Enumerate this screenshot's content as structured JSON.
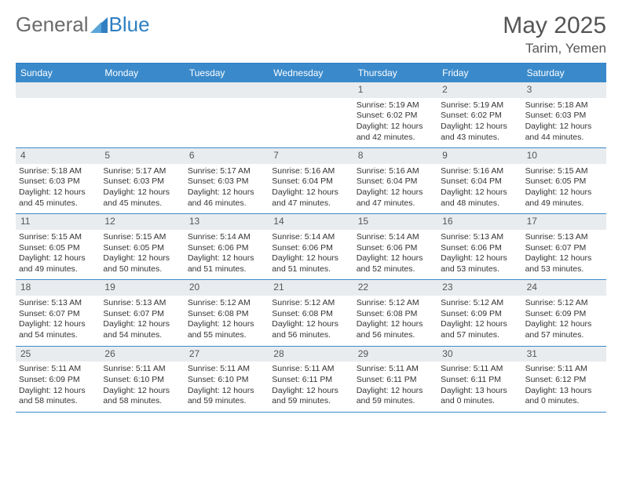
{
  "brand": {
    "part1": "General",
    "part2": "Blue"
  },
  "title": "May 2025",
  "location": "Tarim, Yemen",
  "colors": {
    "header_bg": "#3a8acb",
    "header_text": "#ffffff",
    "border": "#2f7fc2",
    "daynum_bg": "#e9ecef",
    "text": "#333333",
    "muted": "#555555"
  },
  "days_of_week": [
    "Sunday",
    "Monday",
    "Tuesday",
    "Wednesday",
    "Thursday",
    "Friday",
    "Saturday"
  ],
  "weeks": [
    [
      {
        "n": "",
        "empty": true
      },
      {
        "n": "",
        "empty": true
      },
      {
        "n": "",
        "empty": true
      },
      {
        "n": "",
        "empty": true
      },
      {
        "n": "1",
        "sunrise": "5:19 AM",
        "sunset": "6:02 PM",
        "dl_h": 12,
        "dl_m": 42
      },
      {
        "n": "2",
        "sunrise": "5:19 AM",
        "sunset": "6:02 PM",
        "dl_h": 12,
        "dl_m": 43
      },
      {
        "n": "3",
        "sunrise": "5:18 AM",
        "sunset": "6:03 PM",
        "dl_h": 12,
        "dl_m": 44
      }
    ],
    [
      {
        "n": "4",
        "sunrise": "5:18 AM",
        "sunset": "6:03 PM",
        "dl_h": 12,
        "dl_m": 45
      },
      {
        "n": "5",
        "sunrise": "5:17 AM",
        "sunset": "6:03 PM",
        "dl_h": 12,
        "dl_m": 45
      },
      {
        "n": "6",
        "sunrise": "5:17 AM",
        "sunset": "6:03 PM",
        "dl_h": 12,
        "dl_m": 46
      },
      {
        "n": "7",
        "sunrise": "5:16 AM",
        "sunset": "6:04 PM",
        "dl_h": 12,
        "dl_m": 47
      },
      {
        "n": "8",
        "sunrise": "5:16 AM",
        "sunset": "6:04 PM",
        "dl_h": 12,
        "dl_m": 47
      },
      {
        "n": "9",
        "sunrise": "5:16 AM",
        "sunset": "6:04 PM",
        "dl_h": 12,
        "dl_m": 48
      },
      {
        "n": "10",
        "sunrise": "5:15 AM",
        "sunset": "6:05 PM",
        "dl_h": 12,
        "dl_m": 49
      }
    ],
    [
      {
        "n": "11",
        "sunrise": "5:15 AM",
        "sunset": "6:05 PM",
        "dl_h": 12,
        "dl_m": 49
      },
      {
        "n": "12",
        "sunrise": "5:15 AM",
        "sunset": "6:05 PM",
        "dl_h": 12,
        "dl_m": 50
      },
      {
        "n": "13",
        "sunrise": "5:14 AM",
        "sunset": "6:06 PM",
        "dl_h": 12,
        "dl_m": 51
      },
      {
        "n": "14",
        "sunrise": "5:14 AM",
        "sunset": "6:06 PM",
        "dl_h": 12,
        "dl_m": 51
      },
      {
        "n": "15",
        "sunrise": "5:14 AM",
        "sunset": "6:06 PM",
        "dl_h": 12,
        "dl_m": 52
      },
      {
        "n": "16",
        "sunrise": "5:13 AM",
        "sunset": "6:06 PM",
        "dl_h": 12,
        "dl_m": 53
      },
      {
        "n": "17",
        "sunrise": "5:13 AM",
        "sunset": "6:07 PM",
        "dl_h": 12,
        "dl_m": 53
      }
    ],
    [
      {
        "n": "18",
        "sunrise": "5:13 AM",
        "sunset": "6:07 PM",
        "dl_h": 12,
        "dl_m": 54
      },
      {
        "n": "19",
        "sunrise": "5:13 AM",
        "sunset": "6:07 PM",
        "dl_h": 12,
        "dl_m": 54
      },
      {
        "n": "20",
        "sunrise": "5:12 AM",
        "sunset": "6:08 PM",
        "dl_h": 12,
        "dl_m": 55
      },
      {
        "n": "21",
        "sunrise": "5:12 AM",
        "sunset": "6:08 PM",
        "dl_h": 12,
        "dl_m": 56
      },
      {
        "n": "22",
        "sunrise": "5:12 AM",
        "sunset": "6:08 PM",
        "dl_h": 12,
        "dl_m": 56
      },
      {
        "n": "23",
        "sunrise": "5:12 AM",
        "sunset": "6:09 PM",
        "dl_h": 12,
        "dl_m": 57
      },
      {
        "n": "24",
        "sunrise": "5:12 AM",
        "sunset": "6:09 PM",
        "dl_h": 12,
        "dl_m": 57
      }
    ],
    [
      {
        "n": "25",
        "sunrise": "5:11 AM",
        "sunset": "6:09 PM",
        "dl_h": 12,
        "dl_m": 58
      },
      {
        "n": "26",
        "sunrise": "5:11 AM",
        "sunset": "6:10 PM",
        "dl_h": 12,
        "dl_m": 58
      },
      {
        "n": "27",
        "sunrise": "5:11 AM",
        "sunset": "6:10 PM",
        "dl_h": 12,
        "dl_m": 59
      },
      {
        "n": "28",
        "sunrise": "5:11 AM",
        "sunset": "6:11 PM",
        "dl_h": 12,
        "dl_m": 59
      },
      {
        "n": "29",
        "sunrise": "5:11 AM",
        "sunset": "6:11 PM",
        "dl_h": 12,
        "dl_m": 59
      },
      {
        "n": "30",
        "sunrise": "5:11 AM",
        "sunset": "6:11 PM",
        "dl_h": 13,
        "dl_m": 0
      },
      {
        "n": "31",
        "sunrise": "5:11 AM",
        "sunset": "6:12 PM",
        "dl_h": 13,
        "dl_m": 0
      }
    ]
  ],
  "labels": {
    "sunrise": "Sunrise:",
    "sunset": "Sunset:",
    "daylight": "Daylight:",
    "hours": "hours",
    "and": "and",
    "minutes": "minutes."
  }
}
